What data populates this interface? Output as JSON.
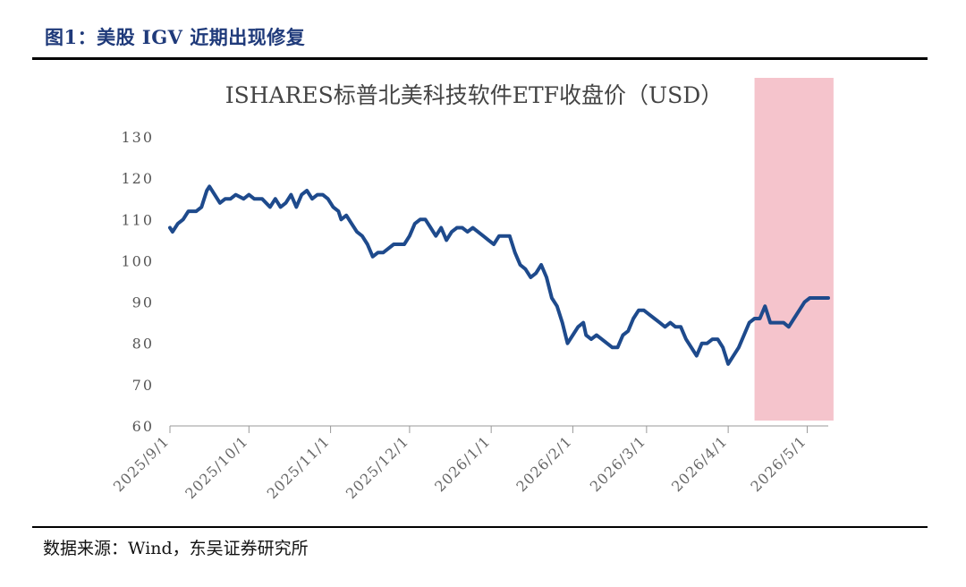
{
  "figure_title": "图1：美股 IGV 近期出现修复",
  "source": "数据来源：Wind，东吴证券研究所",
  "colors": {
    "line": "#1e4a8c",
    "highlight": "#f5c4cc",
    "axis": "#999999",
    "title_blue": "#1f3a7a"
  },
  "chart_data": {
    "type": "line",
    "title": "ISHARES标普北美科技软件ETF收盘价（USD）",
    "xlabel": "",
    "ylabel": "",
    "ylim": [
      60,
      130
    ],
    "yticks": [
      60,
      70,
      80,
      90,
      100,
      110,
      120,
      130
    ],
    "xticks": [
      "2025/9/1",
      "2025/10/1",
      "2025/11/1",
      "2025/12/1",
      "2026/1/1",
      "2026/2/1",
      "2026/3/1",
      "2026/4/1",
      "2026/5/1"
    ],
    "x_range": [
      "2025-09-01",
      "2026-05-09"
    ],
    "highlight_range": [
      "2026-04-11",
      "2026-05-11"
    ],
    "grid": false,
    "legend": "none",
    "series": [
      {
        "x": [
          "2025-09-01",
          "2025-09-02",
          "2025-09-04",
          "2025-09-06",
          "2025-09-08",
          "2025-09-11",
          "2025-09-13",
          "2025-09-15",
          "2025-09-16",
          "2025-09-18",
          "2025-09-20",
          "2025-09-22",
          "2025-09-24",
          "2025-09-26",
          "2025-09-29",
          "2025-10-01",
          "2025-10-03",
          "2025-10-06",
          "2025-10-09",
          "2025-10-11",
          "2025-10-13",
          "2025-10-15",
          "2025-10-17",
          "2025-10-19",
          "2025-10-21",
          "2025-10-23",
          "2025-10-25",
          "2025-10-27",
          "2025-10-29",
          "2025-10-31",
          "2025-11-02",
          "2025-11-04",
          "2025-11-05",
          "2025-11-07",
          "2025-11-09",
          "2025-11-11",
          "2025-11-13",
          "2025-11-15",
          "2025-11-17",
          "2025-11-19",
          "2025-11-21",
          "2025-11-23",
          "2025-11-25",
          "2025-11-27",
          "2025-11-29",
          "2025-12-01",
          "2025-12-03",
          "2025-12-05",
          "2025-12-07",
          "2025-12-09",
          "2025-12-11",
          "2025-12-13",
          "2025-12-15",
          "2025-12-17",
          "2025-12-19",
          "2025-12-21",
          "2025-12-23",
          "2025-12-25",
          "2025-12-27",
          "2025-12-29",
          "2025-12-31",
          "2026-01-02",
          "2026-01-04",
          "2026-01-06",
          "2026-01-08",
          "2026-01-10",
          "2026-01-12",
          "2026-01-14",
          "2026-01-16",
          "2026-01-18",
          "2026-01-20",
          "2026-01-22",
          "2026-01-24",
          "2026-01-26",
          "2026-01-28",
          "2026-01-30",
          "2026-02-01",
          "2026-02-03",
          "2026-02-05",
          "2026-02-06",
          "2026-02-08",
          "2026-02-10",
          "2026-02-12",
          "2026-02-14",
          "2026-02-16",
          "2026-02-18",
          "2026-02-20",
          "2026-02-22",
          "2026-02-24",
          "2026-02-26",
          "2026-02-28",
          "2026-03-02",
          "2026-03-04",
          "2026-03-06",
          "2026-03-08",
          "2026-03-10",
          "2026-03-12",
          "2026-03-14",
          "2026-03-16",
          "2026-03-18",
          "2026-03-20",
          "2026-03-22",
          "2026-03-24",
          "2026-03-26",
          "2026-03-28",
          "2026-03-30",
          "2026-04-01",
          "2026-04-03",
          "2026-04-05",
          "2026-04-07",
          "2026-04-09",
          "2026-04-11",
          "2026-04-13",
          "2026-04-15",
          "2026-04-17",
          "2026-04-19",
          "2026-04-20",
          "2026-04-22",
          "2026-04-24",
          "2026-04-26",
          "2026-04-28",
          "2026-04-30",
          "2026-05-02",
          "2026-05-04",
          "2026-05-06",
          "2026-05-07",
          "2026-05-09"
        ],
        "values": [
          108,
          107,
          109,
          110,
          112,
          112,
          113,
          117,
          118,
          116,
          114,
          115,
          115,
          116,
          115,
          116,
          115,
          115,
          113,
          115,
          113,
          114,
          116,
          113,
          116,
          117,
          115,
          116,
          116,
          115,
          113,
          112,
          110,
          111,
          109,
          107,
          106,
          104,
          101,
          102,
          102,
          103,
          104,
          104,
          104,
          106,
          109,
          110,
          110,
          108,
          106,
          108,
          105,
          107,
          108,
          108,
          107,
          108,
          107,
          106,
          105,
          104,
          106,
          106,
          106,
          102,
          99,
          98,
          96,
          97,
          99,
          96,
          91,
          89,
          85,
          80,
          82,
          84,
          85,
          82,
          81,
          82,
          81,
          80,
          79,
          79,
          82,
          83,
          86,
          88,
          88,
          87,
          86,
          85,
          84,
          85,
          84,
          84,
          81,
          79,
          77,
          80,
          80,
          81,
          81,
          79,
          75,
          77,
          79,
          82,
          85,
          86,
          86,
          89,
          85,
          85,
          85,
          85,
          84,
          86,
          88,
          90,
          91,
          91,
          91,
          91,
          91
        ]
      }
    ]
  }
}
